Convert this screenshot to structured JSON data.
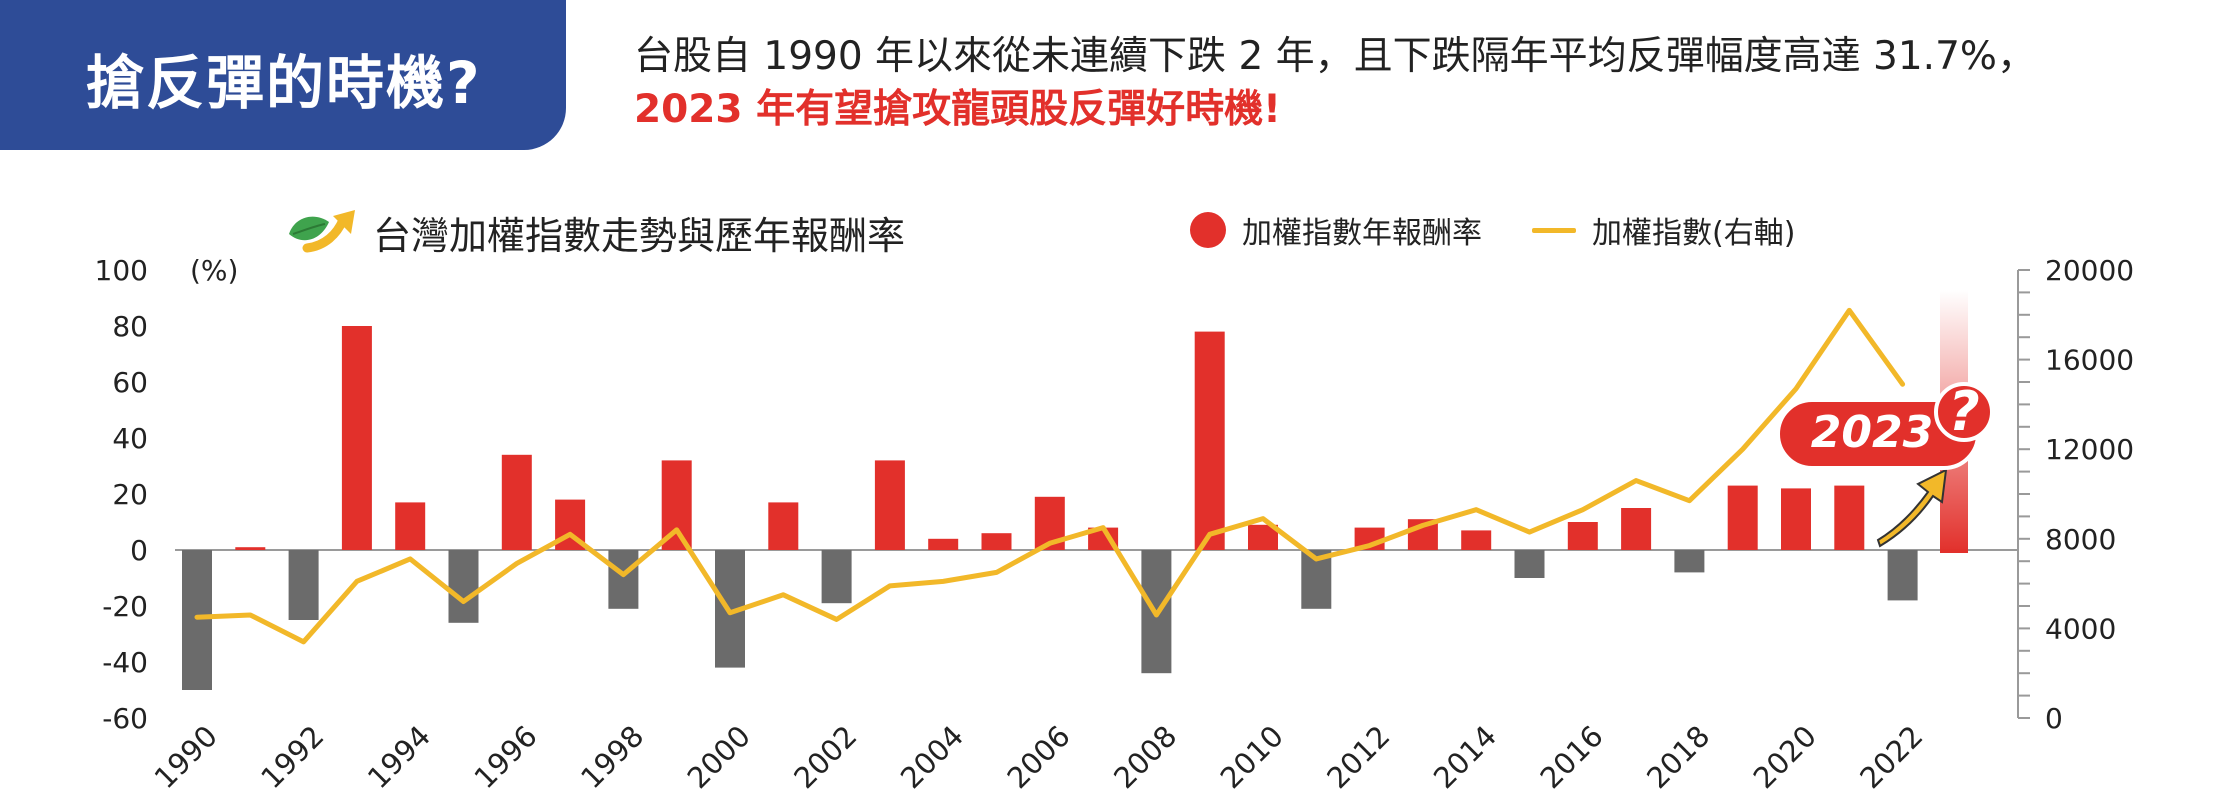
{
  "header": {
    "title": "搶反彈的時機?",
    "line1": "台股自 1990 年以來從未連續下跌 2 年，且下跌隔年平均反彈幅度高達 31.7%，",
    "line2": "2023 年有望搶攻龍頭股反彈好時機!"
  },
  "legend": {
    "bar_label": "加權指數年報酬率",
    "line_label": "加權指數(右軸)"
  },
  "badge": {
    "label": "2023",
    "mark": "?"
  },
  "colors": {
    "positive": "#E2302B",
    "negative": "#6B6B6B",
    "line": "#F2B829",
    "title_bg": "#2E4C97",
    "gradient": "#E2302B"
  },
  "icons": {
    "chart_title_icon": "leaf-arrow-icon",
    "badge_arrow": "up-arrow-icon"
  },
  "chart_data": {
    "type": "bar",
    "title": "台灣加權指數走勢與歷年報酬率",
    "left_axis_unit": "(%)",
    "ylim_left": [
      -60,
      100
    ],
    "left_ticks": [
      100,
      80,
      60,
      40,
      20,
      0,
      -20,
      -40,
      -60
    ],
    "ylim_right": [
      0,
      20000
    ],
    "right_ticks": [
      20000,
      16000,
      12000,
      8000,
      4000,
      0
    ],
    "x_tick_labels": [
      "1990",
      "1992",
      "1994",
      "1996",
      "1998",
      "2000",
      "2002",
      "2004",
      "2006",
      "2008",
      "2010",
      "2012",
      "2014",
      "2016",
      "2018",
      "2020",
      "2022"
    ],
    "years": [
      1990,
      1991,
      1992,
      1993,
      1994,
      1995,
      1996,
      1997,
      1998,
      1999,
      2000,
      2001,
      2002,
      2003,
      2004,
      2005,
      2006,
      2007,
      2008,
      2009,
      2010,
      2011,
      2012,
      2013,
      2014,
      2015,
      2016,
      2017,
      2018,
      2019,
      2020,
      2021,
      2022,
      2023
    ],
    "series": [
      {
        "name": "加權指數年報酬率",
        "type": "bar",
        "axis": "left",
        "values": [
          -50,
          1,
          -25,
          80,
          17,
          -26,
          34,
          18,
          -21,
          32,
          -42,
          17,
          -19,
          32,
          4,
          6,
          19,
          8,
          -44,
          78,
          9,
          -21,
          8,
          11,
          7,
          -10,
          10,
          15,
          -8,
          23,
          22,
          23,
          -18,
          null
        ]
      },
      {
        "name": "加權指數(右軸)",
        "type": "line",
        "axis": "right",
        "values": [
          4500,
          4600,
          3400,
          6100,
          7100,
          5200,
          6900,
          8200,
          6400,
          8400,
          4700,
          5500,
          4400,
          5900,
          6100,
          6500,
          7800,
          8500,
          4600,
          8200,
          8900,
          7100,
          7700,
          8600,
          9300,
          8300,
          9300,
          10600,
          9700,
          12000,
          14700,
          18200,
          14900,
          null
        ]
      }
    ]
  }
}
